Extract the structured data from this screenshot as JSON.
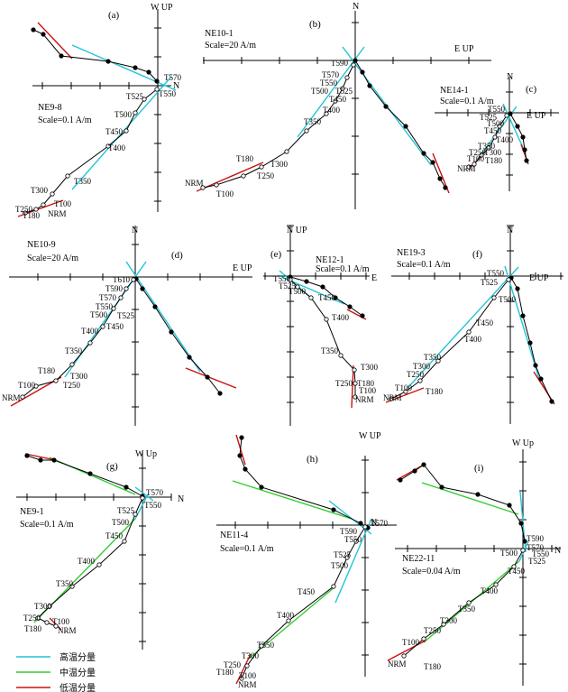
{
  "colors": {
    "high": "#22c4d6",
    "mid": "#33cc33",
    "low": "#cc1111",
    "black": "#000000"
  },
  "legend": [
    {
      "key": "high",
      "label": "高温分量"
    },
    {
      "key": "mid",
      "label": "中温分量"
    },
    {
      "key": "low",
      "label": "低温分量"
    }
  ],
  "panels": [
    {
      "id": "a",
      "letter": "(a)",
      "site": "NE9-8",
      "scale": "Scale=0.1 A/m",
      "vlabel": "W UP",
      "hlabel": "N",
      "labels": [
        "T570",
        "T525",
        "T550",
        "T500",
        "T450",
        "T400",
        "T350",
        "T300",
        "T250",
        "T180",
        "T100",
        "NRM"
      ]
    },
    {
      "id": "b",
      "letter": "(b)",
      "site": "NE10-1",
      "scale": "Scale=20 A/m",
      "vlabel": "N",
      "hlabel": "E UP",
      "labels": [
        "T590",
        "T570",
        "T550",
        "T500",
        "T525",
        "T450",
        "T400",
        "T350",
        "T180",
        "T300",
        "T250",
        "NRM",
        "T100"
      ]
    },
    {
      "id": "c",
      "letter": "(c)",
      "site": "NE14-1",
      "scale": "Scale=0.1 A/m",
      "vlabel": "N",
      "hlabel": "E UP",
      "labels": [
        "T550",
        "T525",
        "T500",
        "T450",
        "T400",
        "T350",
        "T250",
        "T300",
        "T100",
        "T180",
        "NRM"
      ]
    },
    {
      "id": "d",
      "letter": "(d)",
      "site": "NE10-9",
      "scale": "Scale=20 A/m",
      "vlabel": "N",
      "hlabel": "E UP",
      "labels": [
        "T610",
        "T590",
        "T570",
        "T550",
        "T500",
        "T525",
        "T400",
        "T450",
        "T350",
        "T180",
        "T300",
        "T250",
        "T100",
        "NRM"
      ]
    },
    {
      "id": "e",
      "letter": "(e)",
      "site": "NE12-1",
      "scale": "Scale=0.1 A/m",
      "vlabel": "N UP",
      "hlabel": "E",
      "labels": [
        "T550",
        "T525",
        "T500",
        "T450",
        "T400",
        "T350",
        "T300",
        "T250",
        "T180",
        "T100",
        "NRM"
      ]
    },
    {
      "id": "f",
      "letter": "(f)",
      "site": "NE19-3",
      "scale": "Scale=0.1 A/m",
      "vlabel": "N",
      "hlabel": "E UP",
      "labels": [
        "T550",
        "T525",
        "T500",
        "T450",
        "T400",
        "T350",
        "T300",
        "T250",
        "T100",
        "NRM",
        "T180"
      ]
    },
    {
      "id": "g",
      "letter": "(g)",
      "site": "NE9-1",
      "scale": "Scale=0.1 A/m",
      "vlabel": "W Up",
      "hlabel": "N",
      "labels": [
        "T570",
        "T525",
        "T550",
        "T500",
        "T450",
        "T400",
        "T350",
        "T300",
        "T250",
        "T100",
        "T180",
        "NRM"
      ]
    },
    {
      "id": "h",
      "letter": "(h)",
      "site": "NE11-4",
      "scale": "Scale=0.1 A/m",
      "vlabel": "W UP",
      "hlabel": "N",
      "labels": [
        "T570",
        "T590",
        "T550",
        "T525",
        "T500",
        "T450",
        "T400",
        "T350",
        "T300",
        "T250",
        "T180",
        "T100",
        "NRM"
      ]
    },
    {
      "id": "i",
      "letter": "(i)",
      "site": "NE22-11",
      "scale": "Scale=0.04 A/m",
      "vlabel": "W Up",
      "hlabel": "N",
      "labels": [
        "T590",
        "T570",
        "T500",
        "T550",
        "T525",
        "T450",
        "T400",
        "T350",
        "T300",
        "T250",
        "T100",
        "NRM",
        "T180"
      ]
    }
  ]
}
